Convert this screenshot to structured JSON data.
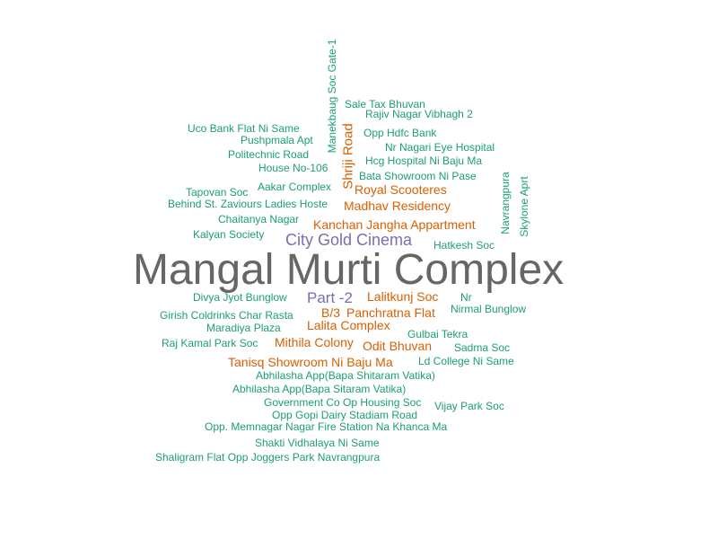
{
  "chart_data": {
    "type": "wordcloud",
    "colors": {
      "teal": "#1b9e77",
      "orange": "#d95f02",
      "purple": "#7570b3",
      "gray": "#666666"
    },
    "words": [
      {
        "text": "Mangal Murti Complex",
        "weight": 48,
        "color": "gray",
        "rotated": false
      },
      {
        "text": "City Gold Cinema",
        "weight": 18,
        "color": "purple",
        "rotated": false
      },
      {
        "text": "Part -2",
        "weight": 17,
        "color": "purple",
        "rotated": false
      },
      {
        "text": "Shriji Road",
        "weight": 15,
        "color": "orange",
        "rotated": true
      },
      {
        "text": "Royal Scooteres",
        "weight": 14,
        "color": "orange",
        "rotated": false
      },
      {
        "text": "Madhav Residency",
        "weight": 14,
        "color": "orange",
        "rotated": false
      },
      {
        "text": "Kanchan Jangha Appartment",
        "weight": 14,
        "color": "orange",
        "rotated": false
      },
      {
        "text": "Lalitkunj Soc",
        "weight": 14,
        "color": "orange",
        "rotated": false
      },
      {
        "text": "B/3",
        "weight": 14,
        "color": "orange",
        "rotated": false
      },
      {
        "text": "Panchratna Flat",
        "weight": 14,
        "color": "orange",
        "rotated": false
      },
      {
        "text": "Lalita Complex",
        "weight": 14,
        "color": "orange",
        "rotated": false
      },
      {
        "text": "Mithila Colony",
        "weight": 14,
        "color": "orange",
        "rotated": false
      },
      {
        "text": "Odit Bhuvan",
        "weight": 14,
        "color": "orange",
        "rotated": false
      },
      {
        "text": "Tanisq Showroom Ni Baju Ma",
        "weight": 14,
        "color": "orange",
        "rotated": false
      },
      {
        "text": "Manekbaug Soc Gate-1",
        "weight": 12,
        "color": "teal",
        "rotated": true
      },
      {
        "text": "Sale Tax Bhuvan",
        "weight": 12,
        "color": "teal",
        "rotated": false
      },
      {
        "text": "Rajiv Nagar Vibhagh 2",
        "weight": 12,
        "color": "teal",
        "rotated": false
      },
      {
        "text": "Uco Bank Flat Ni Same",
        "weight": 12,
        "color": "teal",
        "rotated": false
      },
      {
        "text": "Opp Hdfc Bank",
        "weight": 12,
        "color": "teal",
        "rotated": false
      },
      {
        "text": "Pushpmala Apt",
        "weight": 12,
        "color": "teal",
        "rotated": false
      },
      {
        "text": "Nr Nagari Eye Hospital",
        "weight": 12,
        "color": "teal",
        "rotated": false
      },
      {
        "text": "Politechnic Road",
        "weight": 12,
        "color": "teal",
        "rotated": false
      },
      {
        "text": "Hcg Hospital Ni Baju Ma",
        "weight": 12,
        "color": "teal",
        "rotated": false
      },
      {
        "text": "House No-106",
        "weight": 12,
        "color": "teal",
        "rotated": false
      },
      {
        "text": "Bata Showroom Ni Pase",
        "weight": 12,
        "color": "teal",
        "rotated": false
      },
      {
        "text": "Navrangpura",
        "weight": 12,
        "color": "teal",
        "rotated": true
      },
      {
        "text": "Skylone Aprt",
        "weight": 12,
        "color": "teal",
        "rotated": true
      },
      {
        "text": "Aakar Complex",
        "weight": 12,
        "color": "teal",
        "rotated": false
      },
      {
        "text": "Tapovan Soc",
        "weight": 12,
        "color": "teal",
        "rotated": false
      },
      {
        "text": "Behind St. Zaviours Ladies Hoste",
        "weight": 12,
        "color": "teal",
        "rotated": false
      },
      {
        "text": "Chaitanya Nagar",
        "weight": 12,
        "color": "teal",
        "rotated": false
      },
      {
        "text": "Kalyan Society",
        "weight": 12,
        "color": "teal",
        "rotated": false
      },
      {
        "text": "Hatkesh Soc",
        "weight": 12,
        "color": "teal",
        "rotated": false
      },
      {
        "text": "Divya Jyot Bunglow",
        "weight": 12,
        "color": "teal",
        "rotated": false
      },
      {
        "text": "Nr",
        "weight": 12,
        "color": "teal",
        "rotated": false
      },
      {
        "text": "Nirmal Bunglow",
        "weight": 12,
        "color": "teal",
        "rotated": false
      },
      {
        "text": "Girish Coldrinks Char Rasta",
        "weight": 12,
        "color": "teal",
        "rotated": false
      },
      {
        "text": "Maradiya Plaza",
        "weight": 12,
        "color": "teal",
        "rotated": false
      },
      {
        "text": "Gulbai Tekra",
        "weight": 12,
        "color": "teal",
        "rotated": false
      },
      {
        "text": "Raj Kamal Park Soc",
        "weight": 12,
        "color": "teal",
        "rotated": false
      },
      {
        "text": "Sadma Soc",
        "weight": 12,
        "color": "teal",
        "rotated": false
      },
      {
        "text": "Ld College Ni Same",
        "weight": 12,
        "color": "teal",
        "rotated": false
      },
      {
        "text": "Abhilasha App(Bapa Shitaram Vatika)",
        "weight": 12,
        "color": "teal",
        "rotated": false
      },
      {
        "text": "Abhilasha App(Bapa Sitaram Vatika)",
        "weight": 12,
        "color": "teal",
        "rotated": false
      },
      {
        "text": "Government Co Op Housing Soc",
        "weight": 12,
        "color": "teal",
        "rotated": false
      },
      {
        "text": "Vijay Park Soc",
        "weight": 12,
        "color": "teal",
        "rotated": false
      },
      {
        "text": "Opp Gopi Dairy Stadiam Road",
        "weight": 12,
        "color": "teal",
        "rotated": false
      },
      {
        "text": "Opp. Memnagar Nagar Fire Station Na Khanca Ma",
        "weight": 12,
        "color": "teal",
        "rotated": false
      },
      {
        "text": "Shakti Vidhalaya Ni Same",
        "weight": 12,
        "color": "teal",
        "rotated": false
      },
      {
        "text": "Shaligram Flat Opp Joggers Park Navrangpura",
        "weight": 12,
        "color": "teal",
        "rotated": false
      }
    ]
  }
}
